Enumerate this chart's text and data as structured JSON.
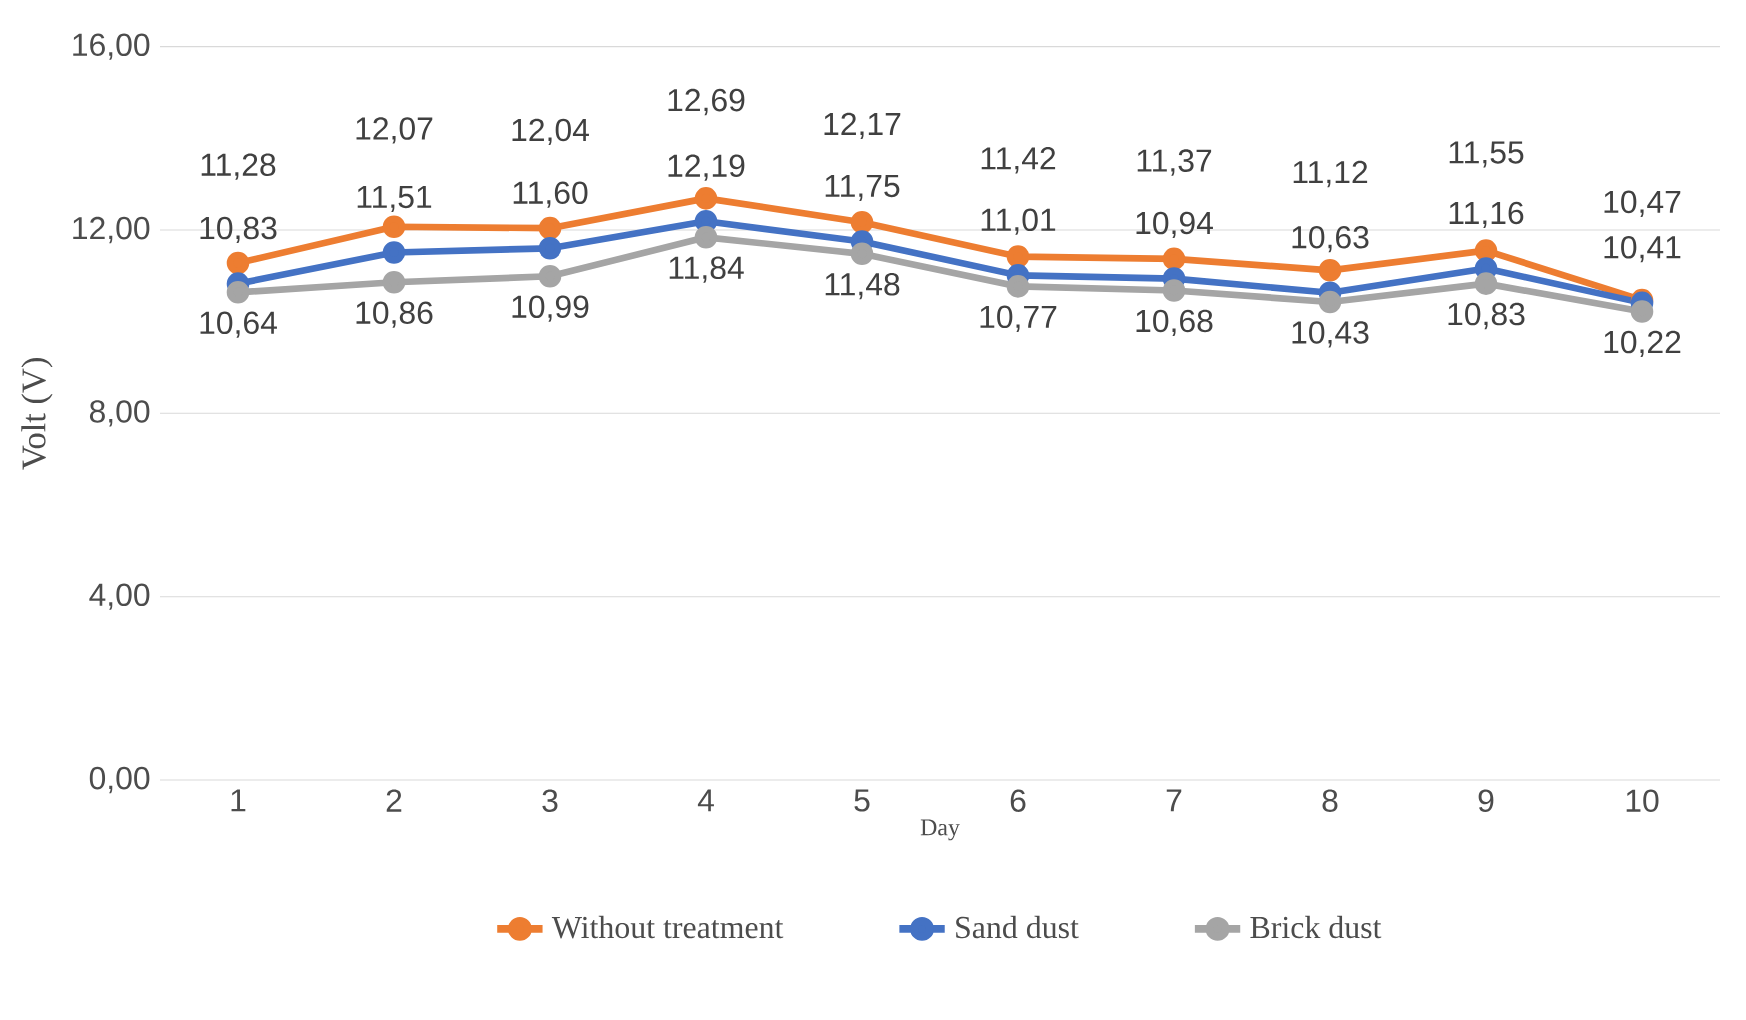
{
  "chart_data": {
    "type": "line",
    "xlabel": "Day",
    "ylabel": "Volt (V)",
    "categories": [
      "1",
      "2",
      "3",
      "4",
      "5",
      "6",
      "7",
      "8",
      "9",
      "10"
    ],
    "ylim": [
      0,
      16
    ],
    "yticks": [
      {
        "value": 0,
        "label": "0,00"
      },
      {
        "value": 4,
        "label": "4,00"
      },
      {
        "value": 8,
        "label": "8,00"
      },
      {
        "value": 12,
        "label": "12,00"
      },
      {
        "value": 16,
        "label": "16,00"
      }
    ],
    "grid": "y",
    "legend": "bottom",
    "marker": "circle",
    "line_style": "solid",
    "series": [
      {
        "name": "Without treatment",
        "color": "#ed7d31",
        "values": [
          11.28,
          12.07,
          12.04,
          12.69,
          12.17,
          11.42,
          11.37,
          11.12,
          11.55,
          10.47
        ],
        "value_labels": [
          "11,28",
          "12,07",
          "12,04",
          "12,69",
          "12,17",
          "11,42",
          "11,37",
          "11,12",
          "11,55",
          "10,47"
        ]
      },
      {
        "name": "Sand dust",
        "color": "#4472c4",
        "values": [
          10.83,
          11.51,
          11.6,
          12.19,
          11.75,
          11.01,
          10.94,
          10.63,
          11.16,
          10.41
        ],
        "value_labels": [
          "10,83",
          "11,51",
          "11,60",
          "12,19",
          "11,75",
          "11,01",
          "10,94",
          "10,63",
          "11,16",
          "10,41"
        ]
      },
      {
        "name": "Brick dust",
        "color": "#a5a5a5",
        "values": [
          10.64,
          10.86,
          10.99,
          11.84,
          11.48,
          10.77,
          10.68,
          10.43,
          10.83,
          10.22
        ],
        "value_labels": [
          "10,64",
          "10,86",
          "10,99",
          "11,84",
          "11,48",
          "10,77",
          "10,68",
          "10,43",
          "10,83",
          "10,22"
        ]
      }
    ]
  }
}
